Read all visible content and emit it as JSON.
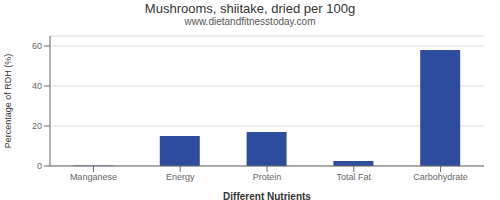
{
  "chart_data": {
    "type": "bar",
    "title": "Mushrooms, shiitake, dried per 100g",
    "subtitle": "www.dietandfitnesstoday.com",
    "xlabel": "Different Nutrients",
    "ylabel": "Percentage of RDH (%)",
    "categories": [
      "Manganese",
      "Energy",
      "Protein",
      "Total Fat",
      "Carbohydrate"
    ],
    "values": [
      0.3,
      15.0,
      17.0,
      2.5,
      58.0
    ],
    "color": "#2e4d9e",
    "ylim": [
      0,
      65
    ],
    "yticks": [
      0,
      20,
      40,
      60
    ],
    "grid": true
  }
}
